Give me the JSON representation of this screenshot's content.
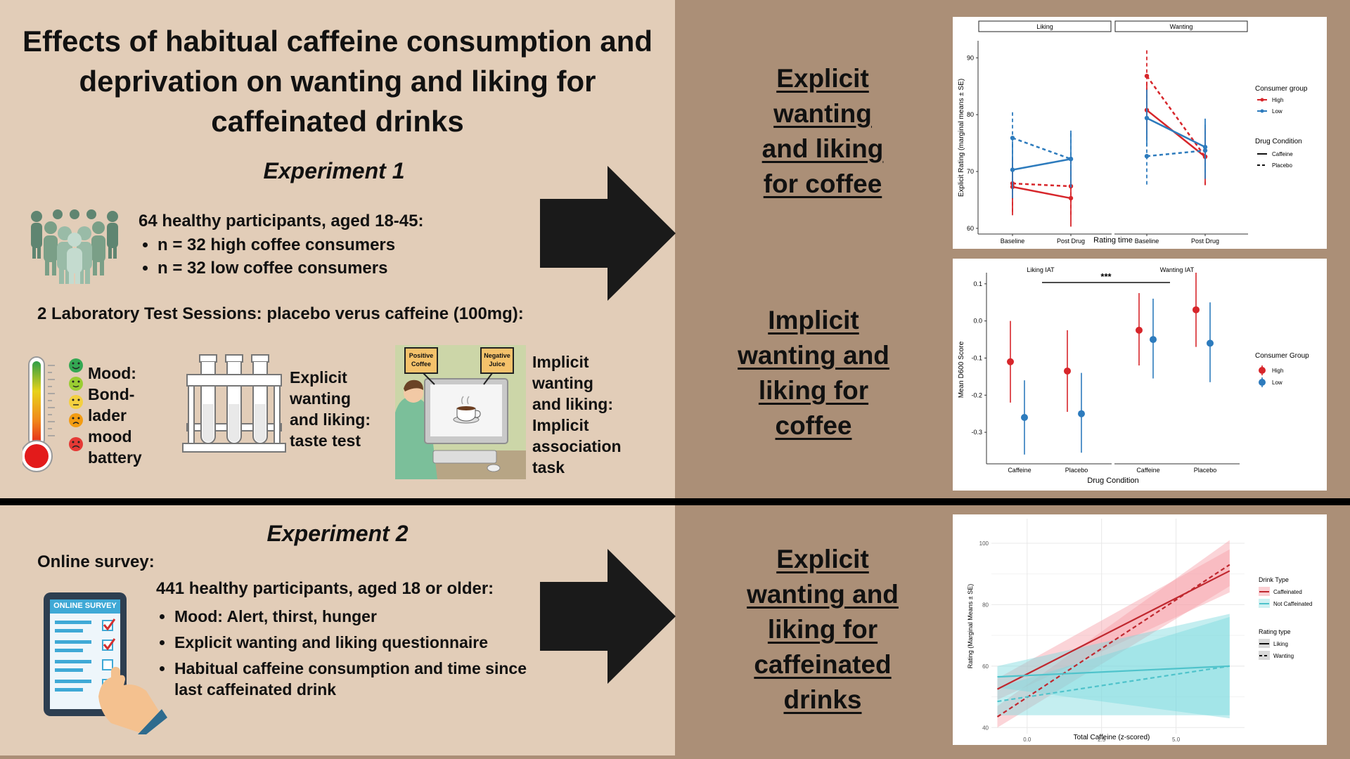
{
  "title": "Effects of habitual caffeine consumption and deprivation on wanting and liking for caffeinated drinks",
  "experiment1": {
    "heading": "Experiment 1",
    "participants": "64 healthy participants, aged 18-45:",
    "bullets": [
      "n = 32 high coffee consumers",
      "n = 32 low coffee consumers"
    ],
    "sessions": "2 Laboratory Test Sessions: placebo verus caffeine (100mg):",
    "measures": {
      "mood": [
        "Mood:",
        "Bond-",
        "lader",
        "mood",
        "battery"
      ],
      "explicit": [
        "Explicit",
        "wanting",
        "and liking:",
        "taste test"
      ],
      "implicit": [
        "Implicit",
        "wanting",
        "and liking:",
        "Implicit",
        "association",
        "task"
      ]
    },
    "iat_labels": {
      "positive": "Positive Coffee",
      "negative": "Negative Juice"
    }
  },
  "experiment2": {
    "heading": "Experiment 2",
    "online_label": "Online survey:",
    "participants": "441 healthy participants, aged 18 or older:",
    "bullets": [
      "Mood: Alert, thirst, hunger",
      "Explicit wanting and liking questionnaire",
      "Habitual caffeine consumption and time since last caffeinated drink"
    ],
    "survey_header": "ONLINE SURVEY"
  },
  "results": {
    "r1": [
      "Explicit",
      "wanting",
      "and liking",
      "for coffee"
    ],
    "r2": [
      "Implicit",
      "wanting and",
      "liking for",
      "coffee"
    ],
    "r3": [
      "Explicit",
      "wanting and",
      "liking for",
      "caffeinated",
      "drinks"
    ]
  },
  "colors": {
    "panel": "#e2cdb8",
    "background": "#ab8f77",
    "high": "#d7262b",
    "low": "#2d7bbd",
    "teal": "#5ccfd6"
  },
  "chart_data": [
    {
      "type": "line",
      "facets": [
        "Liking",
        "Wanting"
      ],
      "categories": [
        "Baseline",
        "Post Drug"
      ],
      "xlabel": "Rating time",
      "ylabel": "Explicit Rating (marginal means ± SE)",
      "ylim": [
        59,
        93
      ],
      "yticks": [
        60,
        70,
        80,
        90
      ],
      "legend": {
        "consumer_title": "Consumer group",
        "consumer": [
          "High",
          "Low"
        ],
        "drug_title": "Drug Condition",
        "drug": [
          "Caffeine",
          "Placebo"
        ]
      },
      "series": [
        {
          "facet": "Liking",
          "group": "High",
          "drug": "Caffeine",
          "values": [
            67.3,
            65.3
          ],
          "se": [
            5,
            5
          ]
        },
        {
          "facet": "Liking",
          "group": "High",
          "drug": "Placebo",
          "values": [
            67.9,
            67.4
          ],
          "se": [
            5,
            5
          ]
        },
        {
          "facet": "Liking",
          "group": "Low",
          "drug": "Caffeine",
          "values": [
            70.3,
            72.2
          ],
          "se": [
            5,
            5
          ]
        },
        {
          "facet": "Liking",
          "group": "Low",
          "drug": "Placebo",
          "values": [
            75.9,
            72.2
          ],
          "se": [
            5,
            5
          ]
        },
        {
          "facet": "Wanting",
          "group": "High",
          "drug": "Caffeine",
          "values": [
            80.8,
            72.6
          ],
          "se": [
            5,
            5
          ]
        },
        {
          "facet": "Wanting",
          "group": "High",
          "drug": "Placebo",
          "values": [
            86.8,
            72.6
          ],
          "se": [
            5,
            5
          ]
        },
        {
          "facet": "Wanting",
          "group": "Low",
          "drug": "Caffeine",
          "values": [
            79.4,
            74.3
          ],
          "se": [
            5,
            5
          ]
        },
        {
          "facet": "Wanting",
          "group": "Low",
          "drug": "Placebo",
          "values": [
            72.7,
            73.7
          ],
          "se": [
            5,
            5
          ]
        }
      ]
    },
    {
      "type": "scatter",
      "facets": [
        "Liking IAT",
        "Wanting IAT"
      ],
      "categories": [
        "Caffeine",
        "Placebo"
      ],
      "xlabel": "Drug Condition",
      "ylabel": "Mean D600 Score",
      "ylim": [
        -0.385,
        0.13
      ],
      "yticks": [
        0.1,
        0.0,
        -0.1,
        -0.2,
        -0.3
      ],
      "ytick_labels": [
        "0.1",
        "0.0",
        "-0.1",
        "-0.2",
        "-0.3"
      ],
      "annotation": "***",
      "legend": {
        "title": "Consumer Group",
        "entries": [
          "High",
          "Low"
        ]
      },
      "points": [
        {
          "facet": "Liking IAT",
          "group": "High",
          "drug": "Caffeine",
          "value": -0.11,
          "lo": -0.22,
          "hi": 0.0
        },
        {
          "facet": "Liking IAT",
          "group": "Low",
          "drug": "Caffeine",
          "value": -0.26,
          "lo": -0.36,
          "hi": -0.16
        },
        {
          "facet": "Liking IAT",
          "group": "High",
          "drug": "Placebo",
          "value": -0.135,
          "lo": -0.245,
          "hi": -0.025
        },
        {
          "facet": "Liking IAT",
          "group": "Low",
          "drug": "Placebo",
          "value": -0.25,
          "lo": -0.355,
          "hi": -0.14
        },
        {
          "facet": "Wanting IAT",
          "group": "High",
          "drug": "Caffeine",
          "value": -0.025,
          "lo": -0.12,
          "hi": 0.075
        },
        {
          "facet": "Wanting IAT",
          "group": "Low",
          "drug": "Caffeine",
          "value": -0.05,
          "lo": -0.155,
          "hi": 0.06
        },
        {
          "facet": "Wanting IAT",
          "group": "High",
          "drug": "Placebo",
          "value": 0.03,
          "lo": -0.07,
          "hi": 0.13
        },
        {
          "facet": "Wanting IAT",
          "group": "Low",
          "drug": "Placebo",
          "value": -0.06,
          "lo": -0.165,
          "hi": 0.05
        }
      ]
    },
    {
      "type": "line",
      "xlabel": "Total Caffeine (z-scored)",
      "ylabel": "Rating (Marginal Means ± SE)",
      "xlim": [
        -1.2,
        7.3
      ],
      "ylim": [
        38,
        108
      ],
      "xticks": [
        0.0,
        2.5,
        5.0
      ],
      "xtick_labels": [
        "0.0",
        "2.5",
        "5.0"
      ],
      "yticks": [
        40,
        60,
        80,
        100
      ],
      "grid": true,
      "legend": {
        "drink_title": "Drink Type",
        "drink": [
          "Caffeinated",
          "Not Caffeinated"
        ],
        "rating_title": "Rating type",
        "rating": [
          "Liking",
          "Wanting"
        ]
      },
      "series": [
        {
          "drink": "Caffeinated",
          "rating": "Liking",
          "x": [
            -1.0,
            6.8
          ],
          "y": [
            52.5,
            91
          ],
          "band_lo": [
            49,
            84
          ],
          "band_hi": [
            56,
            98
          ]
        },
        {
          "drink": "Caffeinated",
          "rating": "Wanting",
          "x": [
            -1.0,
            6.8
          ],
          "y": [
            43.5,
            93
          ],
          "band_lo": [
            40,
            86
          ],
          "band_hi": [
            47,
            101
          ]
        },
        {
          "drink": "Not Caffeinated",
          "rating": "Liking",
          "x": [
            -1.0,
            6.8
          ],
          "y": [
            56.5,
            60
          ],
          "band_lo": [
            53,
            43
          ],
          "band_hi": [
            60,
            77
          ]
        },
        {
          "drink": "Not Caffeinated",
          "rating": "Wanting",
          "x": [
            -1.0,
            6.8
          ],
          "y": [
            48.5,
            60
          ],
          "band_lo": [
            44,
            44
          ],
          "band_hi": [
            53,
            76
          ]
        }
      ]
    }
  ]
}
